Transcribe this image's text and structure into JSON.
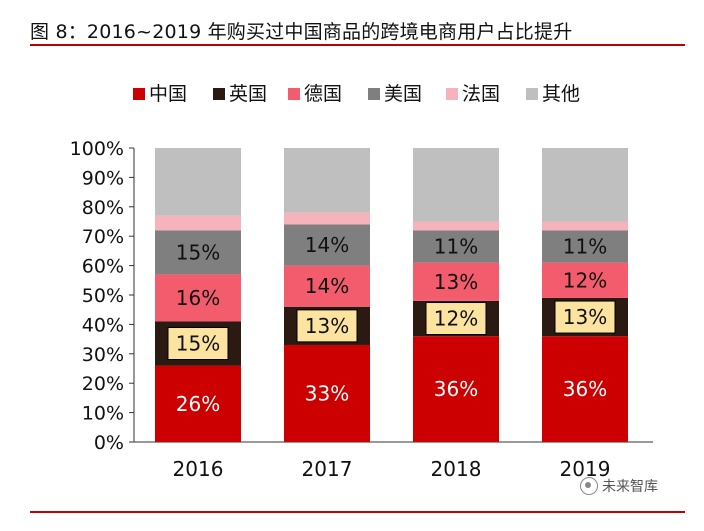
{
  "figure": {
    "title": "图 8：2016~2019 年购买过中国商品的跨境电商用户占比提升",
    "watermark": "未来智库"
  },
  "colors": {
    "rule": "#c00000",
    "中国": "#cc0000",
    "英国": "#2a1a12",
    "德国": "#f25c6c",
    "美国": "#7f7f7f",
    "法国": "#f6b3bb",
    "其他": "#bfbfbf",
    "label_box": "#fde3a0"
  },
  "chart_data": {
    "type": "bar",
    "stacked": true,
    "categories": [
      "2016",
      "2017",
      "2018",
      "2019"
    ],
    "series": [
      {
        "name": "中国",
        "values": [
          26,
          33,
          36,
          36
        ],
        "labels": [
          "26%",
          "33%",
          "36%",
          "36%"
        ]
      },
      {
        "name": "英国",
        "values": [
          15,
          13,
          12,
          13
        ],
        "labels": [
          "15%",
          "13%",
          "12%",
          "13%"
        ]
      },
      {
        "name": "德国",
        "values": [
          16,
          14,
          13,
          12
        ],
        "labels": [
          "16%",
          "14%",
          "13%",
          "12%"
        ]
      },
      {
        "name": "美国",
        "values": [
          15,
          14,
          11,
          11
        ],
        "labels": [
          "15%",
          "14%",
          "11%",
          "11%"
        ]
      },
      {
        "name": "法国",
        "values": [
          5,
          4,
          3,
          3
        ],
        "labels": [
          "",
          "",
          "",
          ""
        ]
      },
      {
        "name": "其他",
        "values": [
          23,
          22,
          25,
          25
        ],
        "labels": [
          "",
          "",
          "",
          ""
        ]
      }
    ],
    "ylim": [
      0,
      100
    ],
    "yticks": [
      "0%",
      "10%",
      "20%",
      "30%",
      "40%",
      "50%",
      "60%",
      "70%",
      "80%",
      "90%",
      "100%"
    ],
    "legend": "top",
    "grid": false
  }
}
